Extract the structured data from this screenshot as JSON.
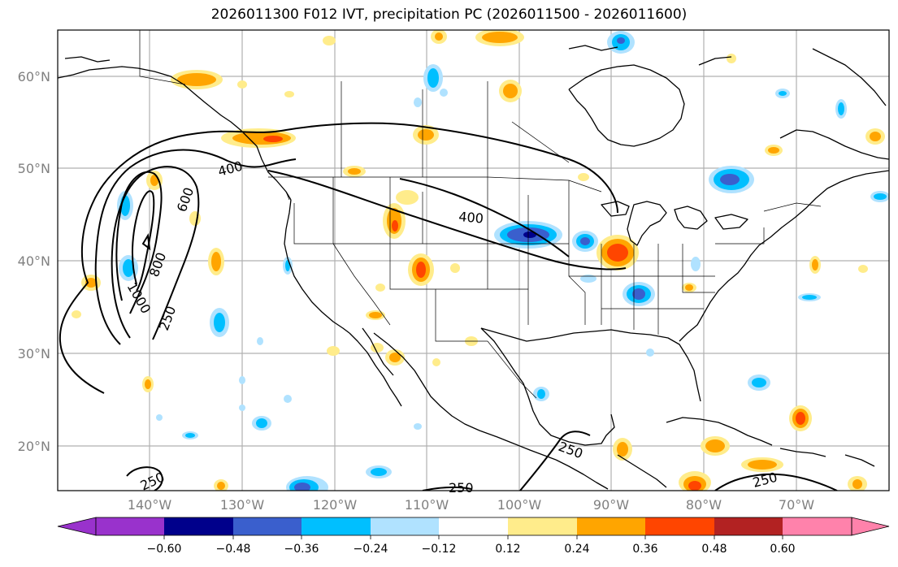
{
  "title": "2026011300 F012 IVT, precipitation PC (2026011500 - 2026011600)",
  "lat_labels": [
    "60°N",
    "50°N",
    "40°N",
    "30°N",
    "20°N"
  ],
  "lon_labels": [
    "140°W",
    "130°W",
    "120°W",
    "110°W",
    "100°W",
    "90°W",
    "80°W",
    "70°W"
  ],
  "contour_labels": [
    "400",
    "600",
    "800",
    "1000",
    "250",
    "400",
    "250",
    "250",
    "250",
    "250"
  ],
  "colorbar": {
    "ticks": [
      "−0.60",
      "−0.48",
      "−0.36",
      "−0.24",
      "−0.12",
      "0.12",
      "0.24",
      "0.36",
      "0.48",
      "0.60"
    ],
    "colors": {
      "under": "#9932cc",
      "bins": [
        "#00008b",
        "#3a5fcd",
        "#00bfff",
        "#b0e2ff",
        "#ffffff",
        "#ffec8b",
        "#ffa500",
        "#ff4500",
        "#b22222"
      ],
      "over": "#ff82ab"
    }
  },
  "palette": {
    "grid": "#b0b0b0",
    "coast": "#000000",
    "pos1": "#ffec8b",
    "pos2": "#ffa500",
    "pos3": "#ff4500",
    "pos4": "#b22222",
    "neg1": "#b0e2ff",
    "neg2": "#00bfff",
    "neg3": "#3a5fcd",
    "neg4": "#00008b"
  }
}
